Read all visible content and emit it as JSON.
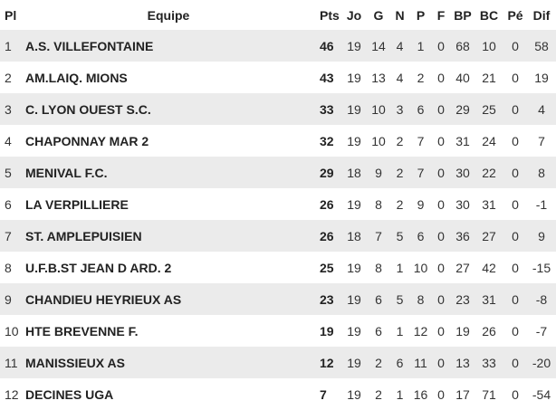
{
  "headers": [
    "Pl",
    "Equipe",
    "Pts",
    "Jo",
    "G",
    "N",
    "P",
    "F",
    "BP",
    "BC",
    "Pé",
    "Dif"
  ],
  "rows": [
    [
      "1",
      "A.S. VILLEFONTAINE",
      "46",
      "19",
      "14",
      "4",
      "1",
      "0",
      "68",
      "10",
      "0",
      "58"
    ],
    [
      "2",
      "AM.LAIQ. MIONS",
      "43",
      "19",
      "13",
      "4",
      "2",
      "0",
      "40",
      "21",
      "0",
      "19"
    ],
    [
      "3",
      "C. LYON OUEST S.C.",
      "33",
      "19",
      "10",
      "3",
      "6",
      "0",
      "29",
      "25",
      "0",
      "4"
    ],
    [
      "4",
      "CHAPONNAY MAR 2",
      "32",
      "19",
      "10",
      "2",
      "7",
      "0",
      "31",
      "24",
      "0",
      "7"
    ],
    [
      "5",
      "MENIVAL F.C.",
      "29",
      "18",
      "9",
      "2",
      "7",
      "0",
      "30",
      "22",
      "0",
      "8"
    ],
    [
      "6",
      "LA VERPILLIERE",
      "26",
      "19",
      "8",
      "2",
      "9",
      "0",
      "30",
      "31",
      "0",
      "-1"
    ],
    [
      "7",
      "ST. AMPLEPUISIEN",
      "26",
      "18",
      "7",
      "5",
      "6",
      "0",
      "36",
      "27",
      "0",
      "9"
    ],
    [
      "8",
      "U.F.B.ST JEAN D ARD. 2",
      "25",
      "19",
      "8",
      "1",
      "10",
      "0",
      "27",
      "42",
      "0",
      "-15"
    ],
    [
      "9",
      "CHANDIEU HEYRIEUX AS",
      "23",
      "19",
      "6",
      "5",
      "8",
      "0",
      "23",
      "31",
      "0",
      "-8"
    ],
    [
      "10",
      "HTE BREVENNE F.",
      "19",
      "19",
      "6",
      "1",
      "12",
      "0",
      "19",
      "26",
      "0",
      "-7"
    ],
    [
      "11",
      "MANISSIEUX AS",
      "12",
      "19",
      "2",
      "6",
      "11",
      "0",
      "13",
      "33",
      "0",
      "-20"
    ],
    [
      "12",
      "DECINES UGA",
      "7",
      "19",
      "2",
      "1",
      "16",
      "0",
      "17",
      "71",
      "0",
      "-54"
    ]
  ]
}
